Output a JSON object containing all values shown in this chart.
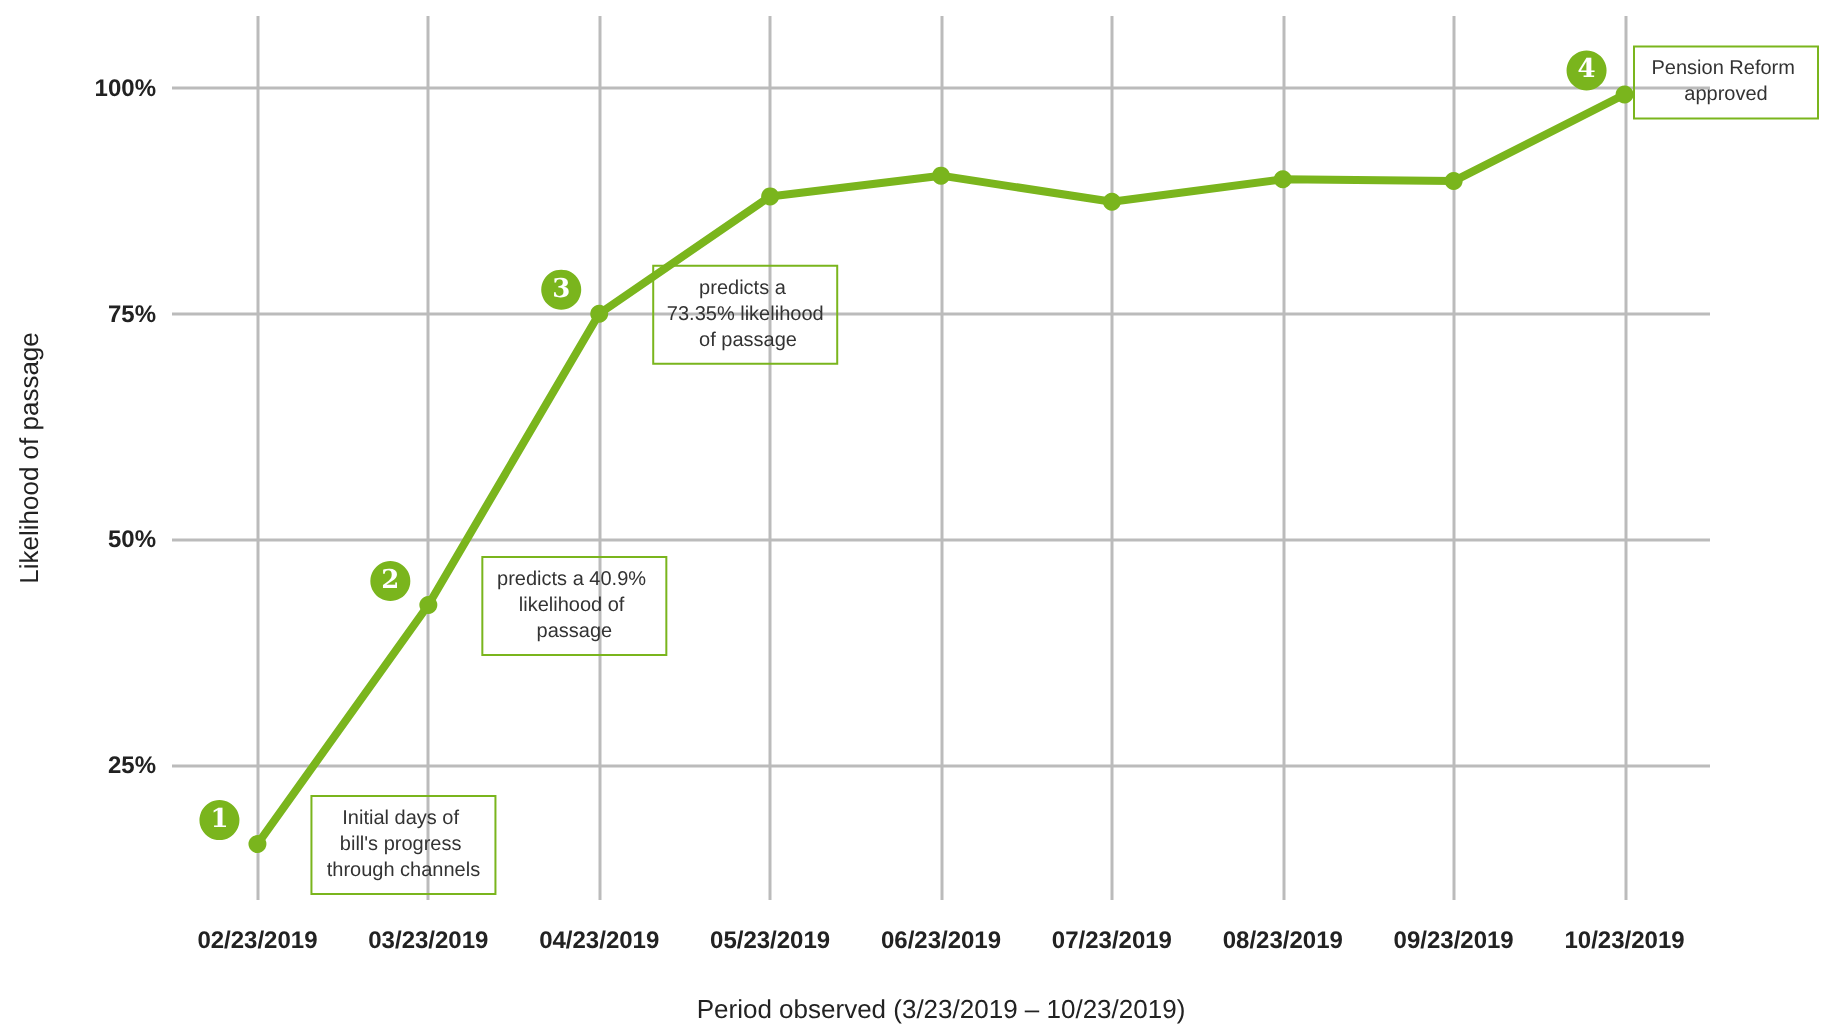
{
  "chart_data": {
    "type": "line",
    "xlabel": "Period observed (3/23/2019 – 10/23/2019)",
    "ylabel": "Likelihood of passage",
    "categories": [
      "02/23/2019",
      "03/23/2019",
      "04/23/2019",
      "05/23/2019",
      "06/23/2019",
      "07/23/2019",
      "08/23/2019",
      "09/23/2019",
      "10/23/2019"
    ],
    "series": [
      {
        "color": "#7ab51d",
        "values": [
          16.2,
          42.7,
          75,
          88,
          90.3,
          87.4,
          89.9,
          89.7,
          99.3
        ]
      }
    ],
    "ylim": [
      10,
      108
    ],
    "yticks": [
      {
        "value": 25,
        "label": "25%"
      },
      {
        "value": 50,
        "label": "50%"
      },
      {
        "value": 75,
        "label": "75%"
      },
      {
        "value": 100,
        "label": "100%"
      }
    ],
    "grid": true,
    "marker": "circle",
    "line_style": "solid",
    "annotations": [
      {
        "text": "1",
        "x": "02/23/2019",
        "y": 16.2
      },
      "Initial days of bill's progress through channels",
      {
        "text": "2",
        "x": "03/23/2019",
        "y": 42.7
      },
      "predicts a 40.9% likelihood of passage",
      {
        "text": "3",
        "x": "04/23/2019",
        "y": 75
      },
      "predicts a 73.35% likelihood of passage",
      {
        "text": "4",
        "x": "10/23/2019",
        "y": 99.3
      },
      "Pension Reform approved"
    ]
  }
}
